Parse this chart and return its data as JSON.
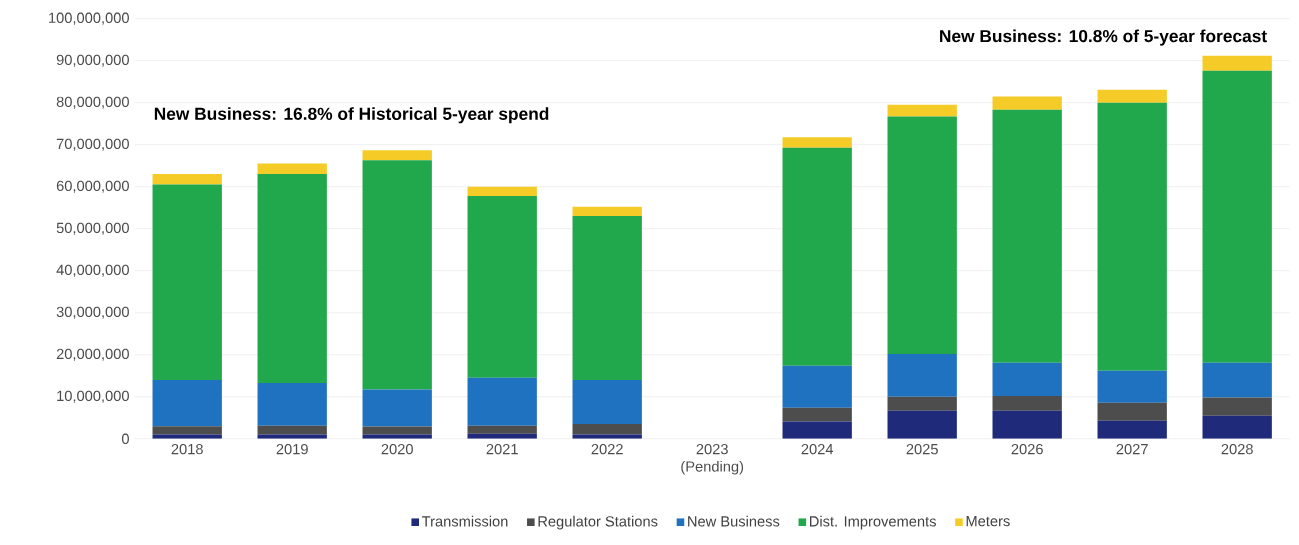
{
  "chart_data": {
    "type": "bar",
    "stacked": true,
    "categories": [
      "2018",
      "2019",
      "2020",
      "2021",
      "2022",
      "2023 (Pending)",
      "2024",
      "2025",
      "2026",
      "2027",
      "2028"
    ],
    "series": [
      {
        "name": "Transmission",
        "color": "#1f2a7a",
        "values": [
          1000000,
          1000000,
          1000000,
          1200000,
          1000000,
          null,
          4100000,
          6700000,
          6700000,
          4300000,
          5500000
        ]
      },
      {
        "name": "Regulator Stations",
        "color": "#4d4d4d",
        "values": [
          2000000,
          2100000,
          1900000,
          1900000,
          2500000,
          null,
          3300000,
          3300000,
          3500000,
          4300000,
          4300000
        ]
      },
      {
        "name": "New Business",
        "color": "#1f72c0",
        "values": [
          11000000,
          10200000,
          8800000,
          11400000,
          10500000,
          null,
          10000000,
          10200000,
          7900000,
          7600000,
          8300000
        ]
      },
      {
        "name": "Dist. Improvements",
        "color": "#22a84c",
        "values": [
          46500000,
          49700000,
          54600000,
          43300000,
          39000000,
          null,
          51900000,
          56500000,
          60200000,
          63800000,
          69500000
        ]
      },
      {
        "name": "Meters",
        "color": "#f5cc27",
        "values": [
          2500000,
          2500000,
          2400000,
          2200000,
          2200000,
          null,
          2500000,
          2800000,
          3200000,
          3100000,
          3600000
        ]
      }
    ],
    "ylim": [
      0,
      100000000
    ],
    "yticks": [
      {
        "value": 0,
        "label": "0"
      },
      {
        "value": 10000000,
        "label": "10,000,000"
      },
      {
        "value": 20000000,
        "label": "20,000,000"
      },
      {
        "value": 30000000,
        "label": "30,000,000"
      },
      {
        "value": 40000000,
        "label": "40,000,000"
      },
      {
        "value": 50000000,
        "label": "50,000,000"
      },
      {
        "value": 60000000,
        "label": "60,000,000"
      },
      {
        "value": 70000000,
        "label": "70,000,000"
      },
      {
        "value": 80000000,
        "label": "80,000,000"
      },
      {
        "value": 90000000,
        "label": "90,000,000"
      },
      {
        "value": 100000000,
        "label": "100,000,000"
      }
    ],
    "grid": "y",
    "legend": "bottom",
    "annotations": [
      "New Business: 16.8% of Historical 5-year spend",
      "New Business: 10.8% of 5-year forecast"
    ]
  }
}
